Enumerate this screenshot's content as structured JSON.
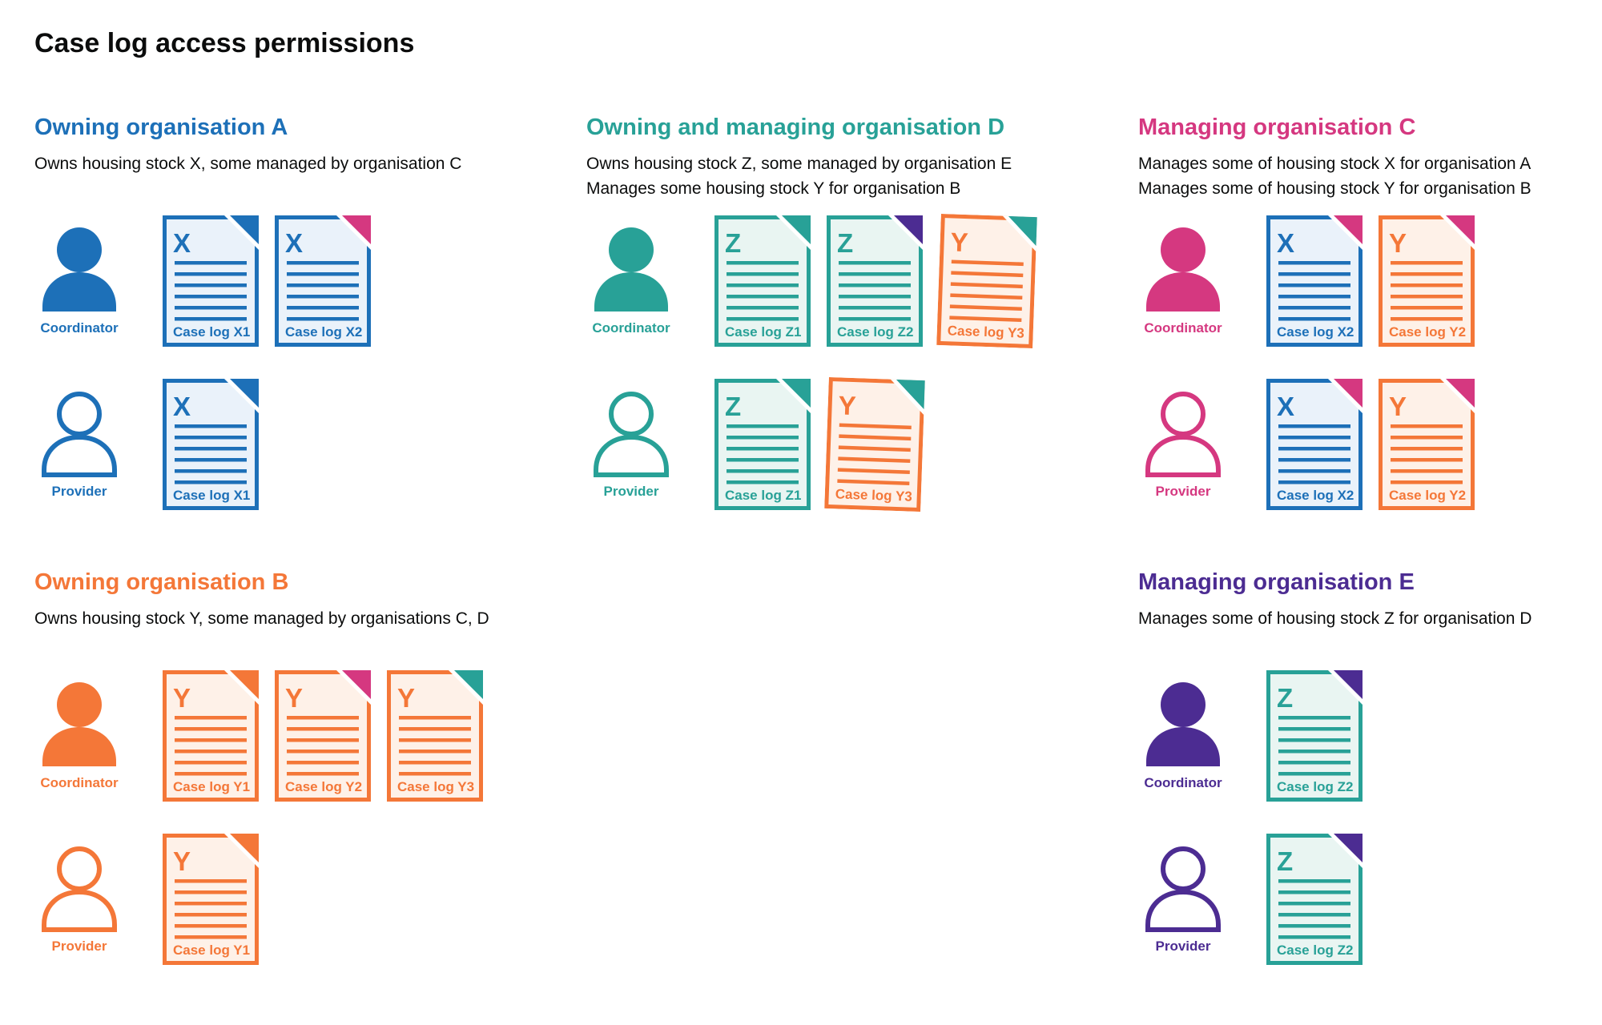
{
  "page_title": "Case log access permissions",
  "palette": {
    "text": "#0b0c0c",
    "blue": "#1d70b8",
    "teal": "#28a197",
    "pink": "#d53880",
    "orange": "#f47738",
    "purple": "#4c2c92",
    "doc_backgrounds": {
      "blue": "#eaf2fa",
      "teal": "#e9f5f2",
      "orange": "#fef1e8"
    }
  },
  "sections": [
    {
      "id": "owning-organisation-a",
      "heading": "Owning organisation A",
      "color": "blue",
      "description": [
        "Owns housing stock X, some managed by organisation C"
      ],
      "rows": [
        {
          "role": "Coordinator",
          "person_style": "filled",
          "docs": [
            {
              "letter": "X",
              "label": "Case log X1",
              "doc_color": "blue",
              "fold_color": "blue"
            },
            {
              "letter": "X",
              "label": "Case log X2",
              "doc_color": "blue",
              "fold_color": "pink"
            }
          ]
        },
        {
          "role": "Provider",
          "person_style": "outline",
          "docs": [
            {
              "letter": "X",
              "label": "Case log X1",
              "doc_color": "blue",
              "fold_color": "blue"
            }
          ]
        }
      ]
    },
    {
      "id": "owning-and-managing-organisation-d",
      "heading": "Owning and managing organisation D",
      "color": "teal",
      "description": [
        "Owns housing stock Z, some managed by organisation E",
        "Manages some housing stock Y for organisation B"
      ],
      "rows": [
        {
          "role": "Coordinator",
          "person_style": "filled",
          "docs": [
            {
              "letter": "Z",
              "label": "Case log Z1",
              "doc_color": "teal",
              "fold_color": "teal"
            },
            {
              "letter": "Z",
              "label": "Case log Z2",
              "doc_color": "teal",
              "fold_color": "purple"
            },
            {
              "letter": "Y",
              "label": "Case log Y3",
              "doc_color": "orange",
              "fold_color": "teal",
              "tilt_deg": 2
            }
          ]
        },
        {
          "role": "Provider",
          "person_style": "outline",
          "docs": [
            {
              "letter": "Z",
              "label": "Case log Z1",
              "doc_color": "teal",
              "fold_color": "teal"
            },
            {
              "letter": "Y",
              "label": "Case log Y3",
              "doc_color": "orange",
              "fold_color": "teal",
              "tilt_deg": 2
            }
          ]
        }
      ]
    },
    {
      "id": "managing-organisation-c",
      "heading": "Managing organisation C",
      "color": "pink",
      "description": [
        "Manages some of housing stock X for organisation A",
        "Manages some of housing stock Y for organisation B"
      ],
      "rows": [
        {
          "role": "Coordinator",
          "person_style": "filled",
          "docs": [
            {
              "letter": "X",
              "label": "Case log X2",
              "doc_color": "blue",
              "fold_color": "pink"
            },
            {
              "letter": "Y",
              "label": "Case log Y2",
              "doc_color": "orange",
              "fold_color": "pink"
            }
          ]
        },
        {
          "role": "Provider",
          "person_style": "outline",
          "docs": [
            {
              "letter": "X",
              "label": "Case log X2",
              "doc_color": "blue",
              "fold_color": "pink"
            },
            {
              "letter": "Y",
              "label": "Case log Y2",
              "doc_color": "orange",
              "fold_color": "pink"
            }
          ]
        }
      ]
    },
    {
      "id": "owning-organisation-b",
      "heading": "Owning organisation B",
      "color": "orange",
      "description": [
        "Owns housing stock Y, some managed by organisations C, D"
      ],
      "rows": [
        {
          "role": "Coordinator",
          "person_style": "filled",
          "docs": [
            {
              "letter": "Y",
              "label": "Case log Y1",
              "doc_color": "orange",
              "fold_color": "orange"
            },
            {
              "letter": "Y",
              "label": "Case log Y2",
              "doc_color": "orange",
              "fold_color": "pink"
            },
            {
              "letter": "Y",
              "label": "Case log Y3",
              "doc_color": "orange",
              "fold_color": "teal"
            }
          ]
        },
        {
          "role": "Provider",
          "person_style": "outline",
          "docs": [
            {
              "letter": "Y",
              "label": "Case log Y1",
              "doc_color": "orange",
              "fold_color": "orange"
            }
          ]
        }
      ]
    },
    {
      "id": "managing-organisation-e",
      "heading": "Managing organisation E",
      "color": "purple",
      "description": [
        "Manages some of housing stock Z for organisation D"
      ],
      "rows": [
        {
          "role": "Coordinator",
          "person_style": "filled",
          "docs": [
            {
              "letter": "Z",
              "label": "Case log Z2",
              "doc_color": "teal",
              "fold_color": "purple"
            }
          ]
        },
        {
          "role": "Provider",
          "person_style": "outline",
          "docs": [
            {
              "letter": "Z",
              "label": "Case log Z2",
              "doc_color": "teal",
              "fold_color": "purple"
            }
          ]
        }
      ]
    }
  ]
}
